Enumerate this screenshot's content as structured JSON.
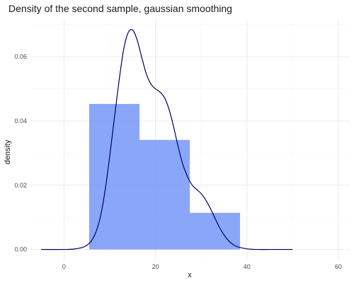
{
  "chart_data": {
    "type": "bar",
    "title": "Density of the second sample, gaussian smoothing",
    "xlabel": "x",
    "ylabel": "density",
    "xlim": [
      -7.5,
      62.5
    ],
    "ylim": [
      -0.0034,
      0.0715
    ],
    "x_ticks": [
      0,
      20,
      40,
      60
    ],
    "y_ticks": [
      0.0,
      0.02,
      0.04,
      0.06
    ],
    "x_tick_labels": [
      "0",
      "20",
      "40",
      "60"
    ],
    "y_tick_labels": [
      "0.00",
      "0.02",
      "0.04",
      "0.06"
    ],
    "grid": true,
    "histogram": {
      "fill_color": "#6f92f7",
      "bins": [
        {
          "x0": 5.5,
          "x1": 16.5,
          "density": 0.0453
        },
        {
          "x0": 16.5,
          "x1": 27.5,
          "density": 0.0341
        },
        {
          "x0": 27.5,
          "x1": 38.5,
          "density": 0.0114
        }
      ]
    },
    "density_curve": {
      "color": "#000066",
      "x": [
        -5,
        0,
        2,
        4,
        5,
        6,
        7,
        8,
        9,
        10,
        11,
        12,
        13,
        14,
        15,
        16,
        17,
        18,
        19,
        20,
        21,
        22,
        23,
        24,
        25,
        26,
        27,
        28,
        29,
        30,
        31,
        32,
        33,
        34,
        35,
        36,
        37,
        38,
        40,
        42,
        45,
        50
      ],
      "y": [
        0.0,
        0.0,
        0.0001,
        0.0006,
        0.0013,
        0.0027,
        0.0055,
        0.0105,
        0.0185,
        0.0291,
        0.0407,
        0.0521,
        0.0619,
        0.0674,
        0.0683,
        0.0652,
        0.0598,
        0.0547,
        0.0515,
        0.05,
        0.049,
        0.0472,
        0.0435,
        0.038,
        0.0318,
        0.0264,
        0.0227,
        0.0201,
        0.0187,
        0.0174,
        0.0154,
        0.0128,
        0.0098,
        0.0069,
        0.0045,
        0.0027,
        0.0015,
        0.0008,
        0.0002,
        0.0,
        0.0,
        0.0
      ]
    }
  }
}
